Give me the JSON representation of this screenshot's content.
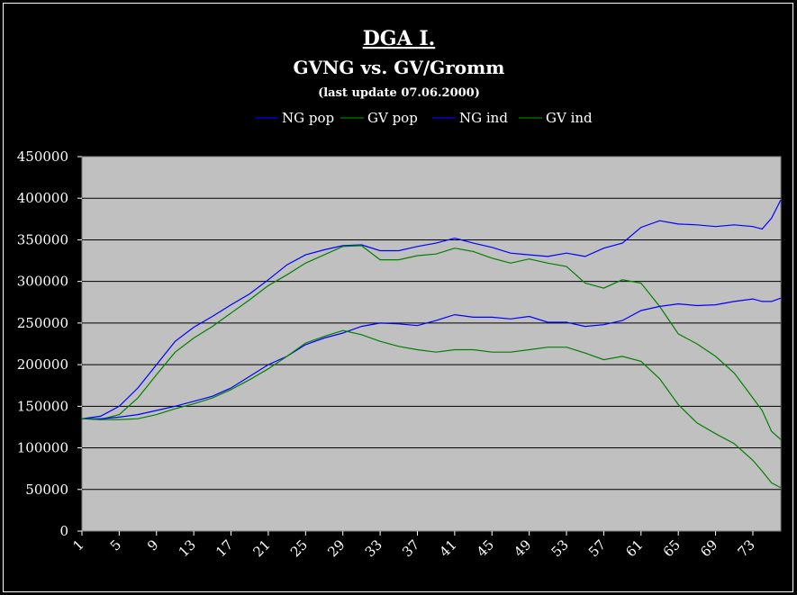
{
  "chart_data": {
    "type": "line",
    "title": "DGA I.",
    "subtitle": "GVNG vs. GV/Gromm",
    "update_note": "(last update 07.06.2000)",
    "xlabel": "",
    "ylabel": "",
    "ylim": [
      0,
      450000
    ],
    "ytick_step": 50000,
    "xlim": [
      1,
      76
    ],
    "xticks": [
      1,
      5,
      9,
      13,
      17,
      21,
      25,
      29,
      33,
      37,
      41,
      45,
      49,
      53,
      57,
      61,
      65,
      69,
      73
    ],
    "grid": "horizontal",
    "legend_position": "top",
    "plot_background": "#c0c0c0",
    "page_background": "#000000",
    "series": [
      {
        "name": "NG pop",
        "color": "#0000ff",
        "x": [
          1,
          3,
          5,
          7,
          9,
          11,
          13,
          15,
          17,
          19,
          21,
          23,
          25,
          27,
          29,
          31,
          33,
          35,
          37,
          39,
          41,
          43,
          45,
          47,
          49,
          51,
          53,
          55,
          57,
          59,
          61,
          63,
          65,
          67,
          69,
          71,
          73,
          74,
          75,
          76
        ],
        "values": [
          135000,
          138000,
          150000,
          172000,
          200000,
          228000,
          245000,
          258000,
          272000,
          285000,
          302000,
          320000,
          332000,
          338000,
          343000,
          344000,
          337000,
          337000,
          342000,
          346000,
          352000,
          346000,
          341000,
          334000,
          332000,
          330000,
          334000,
          330000,
          340000,
          346000,
          365000,
          373000,
          369000,
          368000,
          366000,
          368000,
          366000,
          363000,
          376000,
          398000
        ]
      },
      {
        "name": "GV pop",
        "color": "#008000",
        "x": [
          1,
          3,
          5,
          7,
          9,
          11,
          13,
          15,
          17,
          19,
          21,
          23,
          25,
          27,
          29,
          31,
          33,
          35,
          37,
          39,
          41,
          43,
          45,
          47,
          49,
          51,
          53,
          55,
          57,
          59,
          61,
          63,
          65,
          67,
          69,
          71,
          73,
          74,
          75,
          76
        ],
        "values": [
          135000,
          134000,
          140000,
          160000,
          188000,
          215000,
          232000,
          246000,
          262000,
          278000,
          295000,
          308000,
          322000,
          332000,
          342000,
          343000,
          326000,
          326000,
          331000,
          333000,
          340000,
          336000,
          328000,
          322000,
          327000,
          322000,
          318000,
          298000,
          292000,
          302000,
          298000,
          270000,
          237000,
          225000,
          210000,
          190000,
          160000,
          145000,
          120000,
          110000
        ]
      },
      {
        "name": "NG ind",
        "color": "#0000ff",
        "x": [
          1,
          3,
          5,
          7,
          9,
          11,
          13,
          15,
          17,
          19,
          21,
          23,
          25,
          27,
          29,
          31,
          33,
          35,
          37,
          39,
          41,
          43,
          45,
          47,
          49,
          51,
          53,
          55,
          57,
          59,
          61,
          63,
          65,
          67,
          69,
          71,
          73,
          74,
          75,
          76
        ],
        "values": [
          135000,
          135000,
          137000,
          140000,
          145000,
          150000,
          156000,
          162000,
          172000,
          186000,
          200000,
          210000,
          224000,
          232000,
          238000,
          246000,
          250000,
          249000,
          247000,
          253000,
          260000,
          257000,
          257000,
          255000,
          258000,
          251000,
          251000,
          246000,
          248000,
          253000,
          265000,
          270000,
          273000,
          271000,
          272000,
          276000,
          279000,
          276000,
          276000,
          280000
        ]
      },
      {
        "name": "GV ind",
        "color": "#008000",
        "x": [
          1,
          3,
          5,
          7,
          9,
          11,
          13,
          15,
          17,
          19,
          21,
          23,
          25,
          27,
          29,
          31,
          33,
          35,
          37,
          39,
          41,
          43,
          45,
          47,
          49,
          51,
          53,
          55,
          57,
          59,
          61,
          63,
          65,
          67,
          69,
          71,
          73,
          74,
          75,
          76
        ],
        "values": [
          135000,
          134000,
          134000,
          135000,
          140000,
          147000,
          153000,
          160000,
          170000,
          182000,
          195000,
          210000,
          226000,
          234000,
          241000,
          236000,
          228000,
          222000,
          218000,
          215000,
          218000,
          218000,
          215000,
          215000,
          218000,
          221000,
          221000,
          214000,
          206000,
          210000,
          204000,
          183000,
          152000,
          130000,
          117000,
          105000,
          85000,
          72000,
          58000,
          52000
        ]
      }
    ]
  }
}
